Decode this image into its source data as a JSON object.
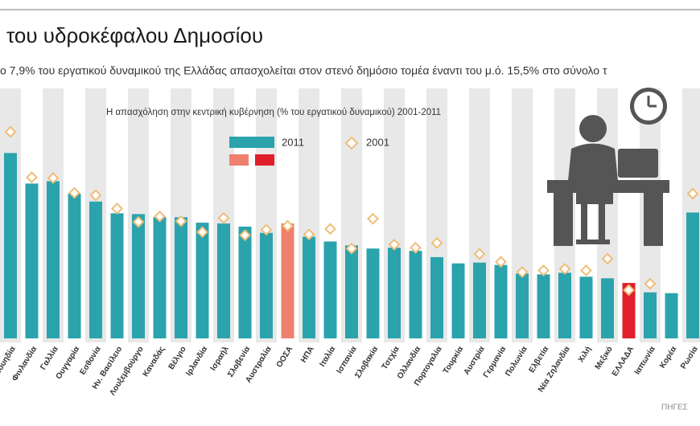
{
  "chart_data": {
    "type": "bar",
    "title": "του υδροκέφαλου Δημοσίου",
    "subtitle": "ο 7,9% του εργατικού δυναμικού της Ελλάδας απασχολείται στον στενό δημόσιο τομέα έναντι του μ.ό. 15,5% στο σύνολο τ",
    "chart_title": "Η απασχόληση στην κεντρική κυβέρνηση (% του εργατικού δυναμικού) 2001-2011",
    "source": "ΠΗΓΕΣ",
    "categories": [
      "Σουηδία",
      "Φινλανδία",
      "Γαλλία",
      "Ουγγαρία",
      "Εσθονία",
      "Ην. Βασίλειο",
      "Λουξεμβούργο",
      "Καναδάς",
      "Βέλγιο",
      "Ιρλανδία",
      "Ισραήλ",
      "Σλοβενία",
      "Αυστραλία",
      "ΟΟΣΑ",
      "ΗΠΑ",
      "Ιταλία",
      "Ισπανία",
      "Σλοβακία",
      "Τσεχία",
      "Ολλανδία",
      "Πορτογαλία",
      "Τουρκία",
      "Αυστρία",
      "Γερμανία",
      "Πολωνία",
      "Ελβετία",
      "Νέα Ζηλανδία",
      "Χιλή",
      "Μεξικό",
      "ΕΛΛΑΔΑ",
      "Ιαπωνία",
      "Κορέα",
      "Ρωσία"
    ],
    "series": [
      {
        "name": "2011",
        "type": "bar",
        "color": "#2ba3ac",
        "colors": [
          "#2ba3ac",
          "#2ba3ac",
          "#2ba3ac",
          "#2ba3ac",
          "#2ba3ac",
          "#2ba3ac",
          "#2ba3ac",
          "#2ba3ac",
          "#2ba3ac",
          "#2ba3ac",
          "#2ba3ac",
          "#2ba3ac",
          "#2ba3ac",
          "#f0806e",
          "#2ba3ac",
          "#2ba3ac",
          "#2ba3ac",
          "#2ba3ac",
          "#2ba3ac",
          "#2ba3ac",
          "#2ba3ac",
          "#2ba3ac",
          "#2ba3ac",
          "#2ba3ac",
          "#2ba3ac",
          "#2ba3ac",
          "#2ba3ac",
          "#2ba3ac",
          "#2ba3ac",
          "#e01f2a",
          "#2ba3ac",
          "#2ba3ac",
          "#2ba3ac"
        ],
        "values": [
          24.5,
          20.6,
          20.9,
          19.3,
          18.3,
          16.8,
          16.7,
          16.3,
          16.3,
          15.6,
          15.5,
          15.1,
          14.3,
          15.5,
          13.8,
          13.2,
          12.7,
          12.3,
          12.4,
          12.0,
          11.2,
          10.4,
          10.5,
          10.2,
          9.1,
          9.0,
          9.2,
          8.7,
          8.5,
          7.9,
          6.7,
          6.6,
          16.9
        ]
      },
      {
        "name": "2001",
        "type": "scatter",
        "marker": "diamond",
        "color": "#efbd78",
        "values": [
          27.2,
          21.4,
          21.3,
          19.4,
          19.1,
          17.4,
          15.7,
          16.4,
          15.8,
          14.4,
          16.2,
          14.0,
          14.7,
          15.2,
          14.1,
          14.8,
          12.3,
          16.1,
          12.8,
          12.4,
          13.0,
          null,
          11.6,
          10.6,
          9.3,
          9.5,
          9.7,
          9.5,
          11.0,
          7.0,
          7.8,
          null,
          19.3
        ]
      }
    ]
  }
}
